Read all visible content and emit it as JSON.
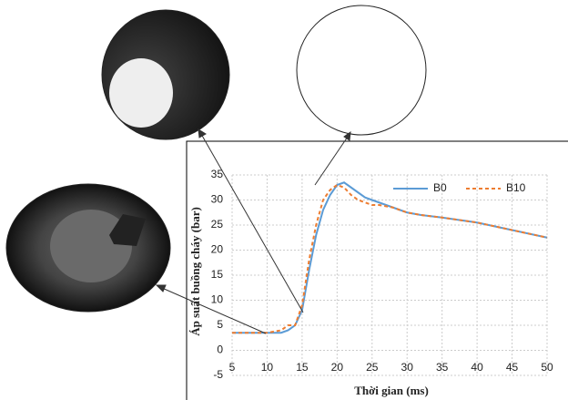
{
  "chart_data": {
    "type": "line",
    "x_label": "Thời gian (ms)",
    "y_label": "Áp suất buồng cháy (bar)",
    "x": [
      5,
      10,
      12,
      13,
      14,
      15,
      16,
      17,
      18,
      19,
      20,
      21,
      22,
      23,
      24,
      25,
      26,
      28,
      30,
      32,
      35,
      40,
      45,
      50
    ],
    "series": [
      {
        "name": "B0",
        "color": "#5b9bd5",
        "dash": false,
        "values": [
          3.5,
          3.5,
          3.5,
          4,
          5,
          8,
          16,
          23,
          28,
          31,
          33,
          33.5,
          32.5,
          31.5,
          30.5,
          30,
          29.5,
          28.5,
          27.5,
          27,
          26.5,
          25.5,
          24,
          22.5
        ]
      },
      {
        "name": "B10",
        "color": "#ed7d31",
        "dash": true,
        "values": [
          3.5,
          3.5,
          4,
          5,
          5,
          9,
          18,
          25,
          30,
          32,
          33,
          32.5,
          31,
          30,
          29.5,
          29,
          29,
          28.5,
          27.5,
          27,
          26.5,
          25.5,
          24,
          22.5
        ]
      }
    ],
    "xlim": [
      5,
      50
    ],
    "xticks": [
      5,
      10,
      15,
      20,
      25,
      30,
      35,
      40,
      45,
      50
    ],
    "ylim": [
      -5,
      35
    ],
    "yticks": [
      -5,
      0,
      5,
      10,
      15,
      20,
      25,
      30,
      35
    ],
    "grid": true,
    "legend": "top-right"
  }
}
